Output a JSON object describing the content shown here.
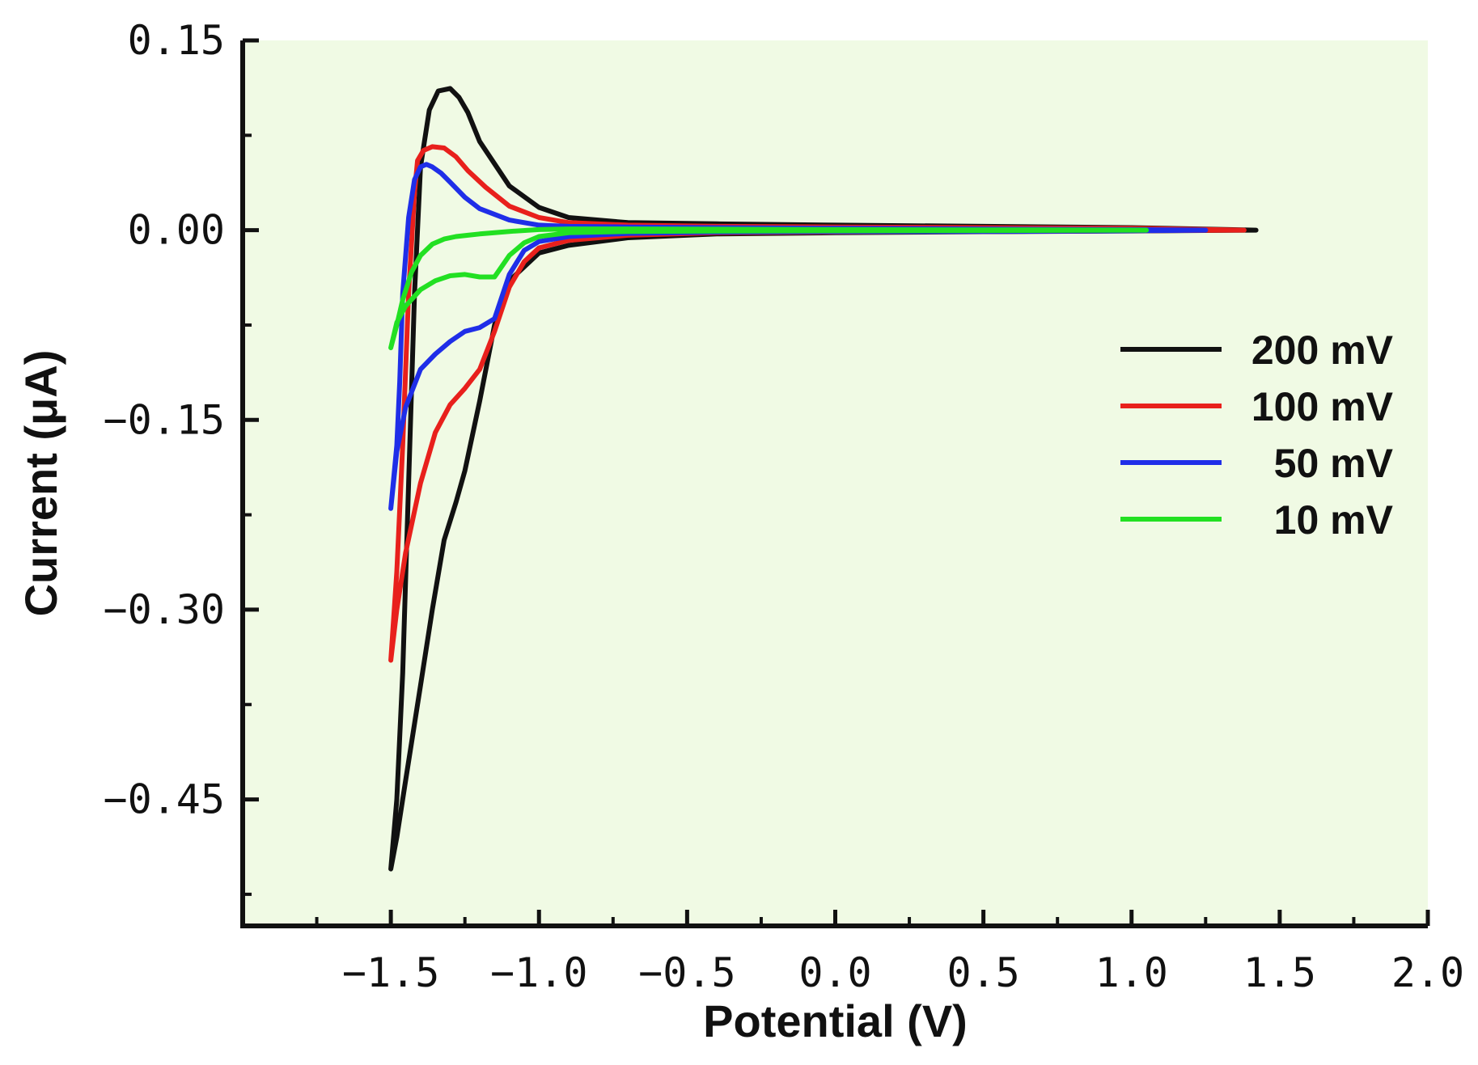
{
  "chart_data": {
    "type": "line",
    "title": "",
    "xlabel": "Potential (V)",
    "ylabel": "Current (μA)",
    "xlim": [
      -2.0,
      2.0
    ],
    "ylim": [
      -0.55,
      0.15
    ],
    "x_ticks": [
      -1.5,
      -1.0,
      -0.5,
      0.0,
      0.5,
      1.0,
      1.5,
      2.0
    ],
    "x_tick_labels": [
      "−1.5",
      "−1.0",
      "−0.5",
      "0.0",
      "0.5",
      "1.0",
      "1.5",
      "2.0"
    ],
    "y_ticks": [
      0.15,
      0.0,
      -0.15,
      -0.3,
      -0.45
    ],
    "y_tick_labels": [
      "0.15",
      "0.00",
      "−0.15",
      "−0.30",
      "−0.45"
    ],
    "grid": false,
    "background_color": "#f0fae4",
    "legend_position": "right",
    "series": [
      {
        "name": "200 mV",
        "color": "#111111",
        "x": [
          1.42,
          1.0,
          0.5,
          0.0,
          -0.4,
          -0.7,
          -0.9,
          -1.0,
          -1.1,
          -1.15,
          -1.2,
          -1.25,
          -1.28,
          -1.32,
          -1.36,
          -1.4,
          -1.45,
          -1.48,
          -1.5,
          -1.48,
          -1.46,
          -1.44,
          -1.42,
          -1.4,
          -1.37,
          -1.34,
          -1.3,
          -1.27,
          -1.24,
          -1.2,
          -1.1,
          -1.0,
          -0.9,
          -0.7,
          -0.4,
          0.0,
          0.5,
          1.0,
          1.42
        ],
        "y": [
          0.0,
          -0.0006,
          -0.0012,
          -0.002,
          -0.003,
          -0.006,
          -0.012,
          -0.018,
          -0.04,
          -0.075,
          -0.135,
          -0.19,
          -0.215,
          -0.245,
          -0.3,
          -0.36,
          -0.435,
          -0.48,
          -0.505,
          -0.45,
          -0.35,
          -0.2,
          -0.05,
          0.05,
          0.095,
          0.11,
          0.112,
          0.105,
          0.093,
          0.07,
          0.035,
          0.018,
          0.01,
          0.006,
          0.005,
          0.004,
          0.003,
          0.002,
          0.0
        ]
      },
      {
        "name": "100 mV",
        "color": "#e8201c",
        "x": [
          1.38,
          1.0,
          0.5,
          0.0,
          -0.4,
          -0.7,
          -0.9,
          -1.0,
          -1.05,
          -1.1,
          -1.15,
          -1.2,
          -1.25,
          -1.3,
          -1.35,
          -1.4,
          -1.45,
          -1.48,
          -1.5,
          -1.48,
          -1.46,
          -1.44,
          -1.42,
          -1.41,
          -1.39,
          -1.36,
          -1.32,
          -1.28,
          -1.24,
          -1.18,
          -1.1,
          -1.0,
          -0.9,
          -0.7,
          -0.4,
          0.0,
          0.5,
          1.0,
          1.38
        ],
        "y": [
          0.0,
          -0.0005,
          -0.001,
          -0.0015,
          -0.002,
          -0.004,
          -0.008,
          -0.014,
          -0.025,
          -0.045,
          -0.08,
          -0.11,
          -0.125,
          -0.138,
          -0.16,
          -0.2,
          -0.255,
          -0.3,
          -0.34,
          -0.27,
          -0.17,
          -0.05,
          0.03,
          0.055,
          0.063,
          0.066,
          0.065,
          0.058,
          0.047,
          0.034,
          0.019,
          0.01,
          0.006,
          0.004,
          0.003,
          0.0025,
          0.002,
          0.0015,
          0.0
        ]
      },
      {
        "name": "50 mV",
        "color": "#1f2ee8",
        "x": [
          1.25,
          1.0,
          0.5,
          0.0,
          -0.4,
          -0.7,
          -0.9,
          -1.0,
          -1.05,
          -1.1,
          -1.15,
          -1.2,
          -1.25,
          -1.3,
          -1.35,
          -1.4,
          -1.45,
          -1.48,
          -1.5,
          -1.48,
          -1.47,
          -1.46,
          -1.44,
          -1.42,
          -1.4,
          -1.38,
          -1.36,
          -1.33,
          -1.3,
          -1.25,
          -1.2,
          -1.1,
          -1.0,
          -0.9,
          -0.7,
          -0.4,
          0.0,
          0.5,
          1.0,
          1.25
        ],
        "y": [
          0.0,
          -0.0005,
          -0.001,
          -0.0012,
          -0.0015,
          -0.0025,
          -0.005,
          -0.009,
          -0.016,
          -0.035,
          -0.07,
          -0.077,
          -0.08,
          -0.088,
          -0.098,
          -0.11,
          -0.14,
          -0.175,
          -0.22,
          -0.17,
          -0.12,
          -0.05,
          0.01,
          0.04,
          0.05,
          0.052,
          0.05,
          0.045,
          0.038,
          0.026,
          0.017,
          0.008,
          0.004,
          0.003,
          0.0025,
          0.002,
          0.0015,
          0.001,
          0.0005,
          0.0
        ]
      },
      {
        "name": "10 mV",
        "color": "#22e022",
        "x": [
          1.05,
          0.5,
          0.0,
          -0.4,
          -0.7,
          -0.9,
          -1.0,
          -1.05,
          -1.1,
          -1.15,
          -1.2,
          -1.25,
          -1.3,
          -1.35,
          -1.4,
          -1.45,
          -1.48,
          -1.5,
          -1.48,
          -1.46,
          -1.43,
          -1.4,
          -1.36,
          -1.32,
          -1.28,
          -1.24,
          -1.2,
          -1.15,
          -1.1,
          -1.0,
          -0.9,
          -0.7,
          -0.4,
          0.0,
          0.5,
          1.05
        ],
        "y": [
          0.0,
          -0.0003,
          -0.0005,
          -0.0007,
          -0.001,
          -0.002,
          -0.005,
          -0.01,
          -0.02,
          -0.037,
          -0.037,
          -0.035,
          -0.036,
          -0.04,
          -0.047,
          -0.06,
          -0.073,
          -0.093,
          -0.075,
          -0.055,
          -0.033,
          -0.02,
          -0.011,
          -0.007,
          -0.005,
          -0.004,
          -0.003,
          -0.002,
          -0.001,
          0.0005,
          0.001,
          0.001,
          0.0008,
          0.0005,
          0.0003,
          0.0
        ]
      }
    ]
  }
}
